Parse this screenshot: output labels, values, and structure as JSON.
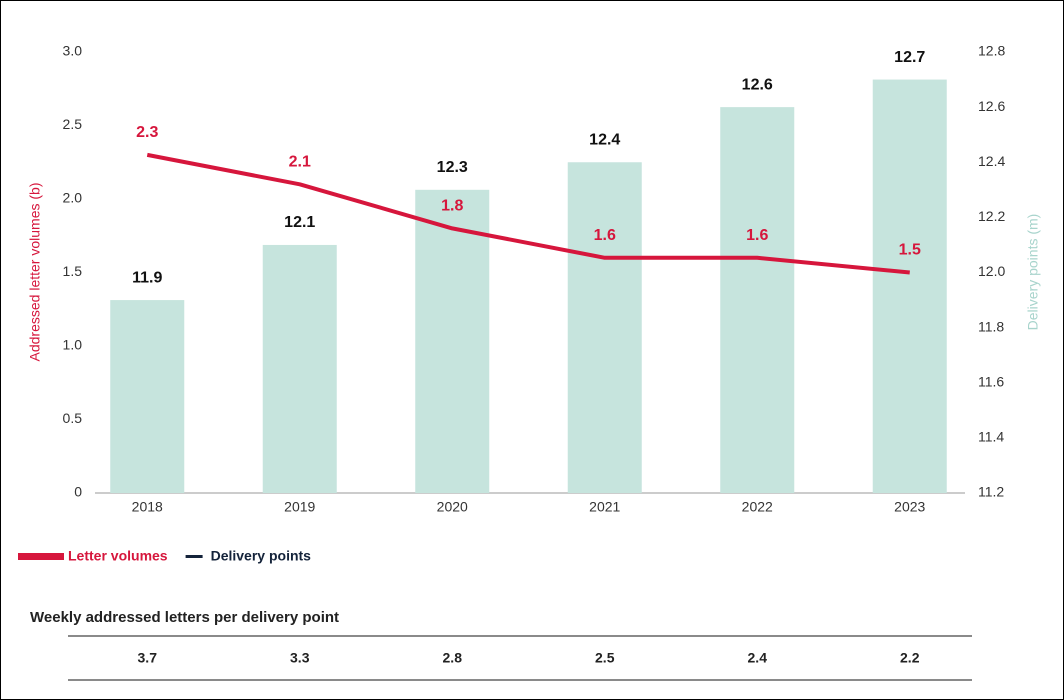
{
  "chart_data": {
    "type": "bar",
    "categories": [
      "2018",
      "2019",
      "2020",
      "2021",
      "2022",
      "2023"
    ],
    "series": [
      {
        "name": "Letter volumes",
        "type": "line",
        "axis": "y",
        "color": "#d6163c",
        "values": [
          2.3,
          2.1,
          1.8,
          1.6,
          1.6,
          1.5
        ]
      },
      {
        "name": "Delivery points",
        "type": "bar",
        "axis": "y2",
        "color": "#c6e4dd",
        "legend_color": "#14233a",
        "values": [
          11.9,
          12.1,
          12.3,
          12.4,
          12.6,
          12.7
        ]
      }
    ],
    "ylabel": "Addressed letter volumes (b)",
    "y2label": "Delivery points (m)",
    "ylim": [
      0,
      3
    ],
    "yticks": [
      0,
      0.5,
      {
        "value": 1,
        "label": "1.0"
      },
      1.5,
      {
        "value": 2,
        "label": "2.0"
      },
      2.5,
      {
        "value": 3,
        "label": "3.0"
      }
    ],
    "y2lim": [
      11.2,
      12.8
    ],
    "y2ticks": [
      11.2,
      11.4,
      11.6,
      11.8,
      {
        "value": 12,
        "label": "12.0"
      },
      12.2,
      12.4,
      12.6,
      12.8
    ],
    "grid": false,
    "legend": "bottom-left",
    "table": {
      "title": "Weekly addressed letters per delivery point",
      "values": [
        3.7,
        3.3,
        2.8,
        2.5,
        2.4,
        2.2
      ]
    }
  }
}
